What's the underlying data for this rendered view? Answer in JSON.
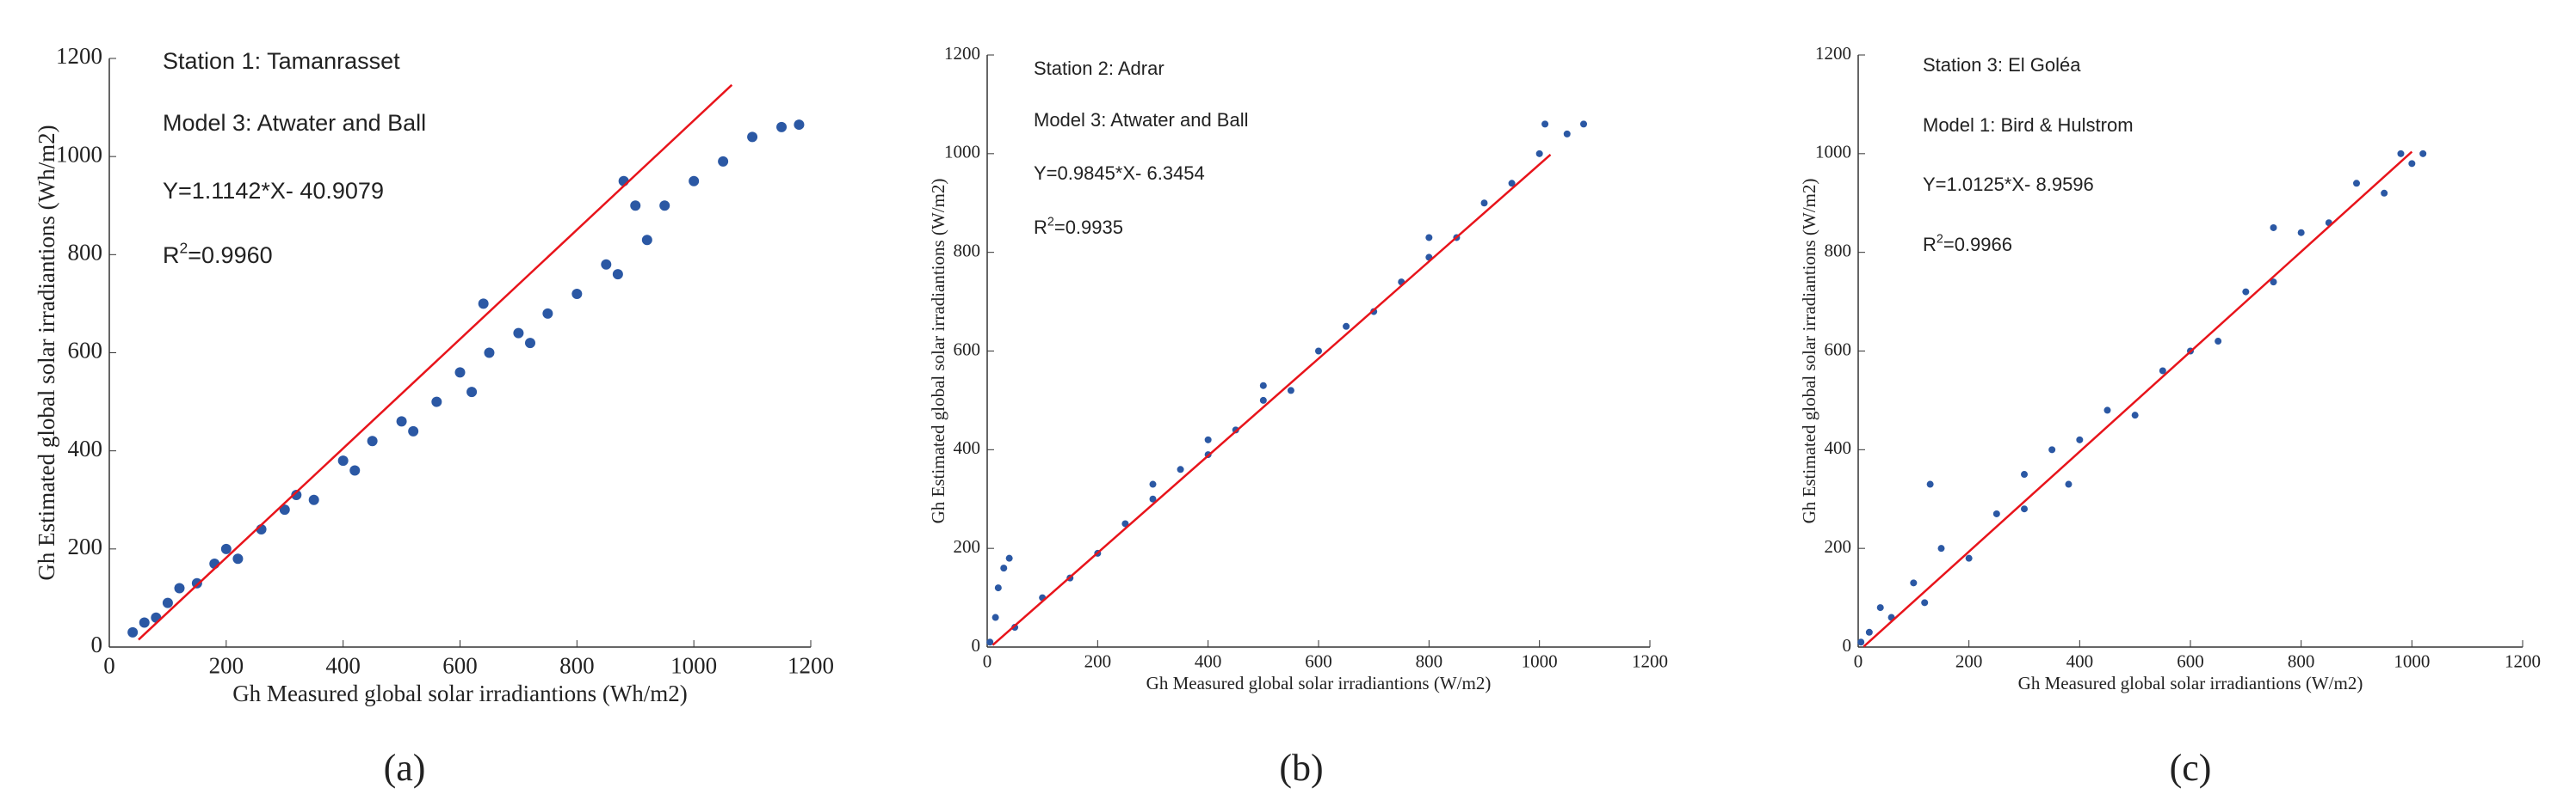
{
  "chart_data": [
    {
      "type": "scatter",
      "annotations": [
        "Station 1: Tamanrasset",
        "Model 3: Atwater and Ball",
        "Y=1.1142*X- 40.9079"
      ],
      "r_squared": [
        "R",
        "2",
        "=0.9960"
      ],
      "xlabel": "Gh Measured global solar irradiantions (Wh/m2)",
      "ylabel": "Gh Estimated global solar irradiantions (Wh/m2)",
      "caption": "(a)",
      "xlim": [
        0,
        1200
      ],
      "ylim": [
        0,
        1200
      ],
      "xticks": [
        0,
        200,
        400,
        600,
        800,
        1000,
        1200
      ],
      "yticks": [
        0,
        200,
        400,
        600,
        800,
        1000,
        1200
      ],
      "series": [
        {
          "type": "scatter",
          "color": "#2b58a4",
          "x": [
            40,
            60,
            80,
            100,
            120,
            150,
            180,
            200,
            220,
            260,
            300,
            320,
            350,
            400,
            420,
            450,
            500,
            520,
            560,
            600,
            620,
            650,
            700,
            720,
            750,
            800,
            850,
            870,
            900,
            920,
            950,
            1000,
            1050,
            1100,
            1150,
            1180,
            640,
            880
          ],
          "values": [
            30,
            50,
            60,
            90,
            120,
            130,
            170,
            200,
            180,
            240,
            280,
            310,
            300,
            380,
            360,
            420,
            460,
            440,
            500,
            560,
            520,
            600,
            640,
            620,
            680,
            720,
            780,
            760,
            900,
            830,
            900,
            950,
            990,
            1040,
            1060,
            1065,
            700,
            950
          ]
        },
        {
          "type": "line",
          "color": "#e8141b",
          "x": [
            50,
            1065
          ],
          "values": [
            15,
            1146
          ]
        }
      ]
    },
    {
      "type": "scatter",
      "annotations": [
        "Station 2: Adrar",
        "Model 3: Atwater and Ball",
        "Y=0.9845*X- 6.3454"
      ],
      "r_squared": [
        "R",
        "2",
        "=0.9935"
      ],
      "xlabel": "Gh Measured global solar irradiantions (W/m2)",
      "ylabel": "Gh Estimated global solar irradiantions (W/m2)",
      "caption": "(b)",
      "xlim": [
        0,
        1200
      ],
      "ylim": [
        0,
        1200
      ],
      "xticks": [
        0,
        200,
        400,
        600,
        800,
        1000,
        1200
      ],
      "yticks": [
        0,
        200,
        400,
        600,
        800,
        1000,
        1200
      ],
      "series": [
        {
          "type": "scatter",
          "color": "#2b58a4",
          "x": [
            5,
            15,
            20,
            30,
            40,
            50,
            100,
            150,
            200,
            250,
            300,
            350,
            400,
            400,
            450,
            500,
            550,
            600,
            650,
            700,
            750,
            800,
            850,
            900,
            950,
            1000,
            1050,
            1080,
            300,
            500,
            800,
            1010
          ],
          "values": [
            10,
            60,
            120,
            160,
            180,
            40,
            100,
            140,
            190,
            250,
            300,
            360,
            390,
            420,
            440,
            500,
            520,
            600,
            650,
            680,
            740,
            790,
            830,
            900,
            940,
            1000,
            1040,
            1060,
            330,
            530,
            830,
            1060
          ]
        },
        {
          "type": "line",
          "color": "#e8141b",
          "x": [
            10,
            1020
          ],
          "values": [
            4,
            998
          ]
        }
      ]
    },
    {
      "type": "scatter",
      "annotations": [
        "Station 3: El Goléa",
        "Model 1: Bird & Hulstrom",
        "Y=1.0125*X- 8.9596"
      ],
      "r_squared": [
        "R",
        "2",
        "=0.9966"
      ],
      "xlabel": "Gh Measured global solar irradiantions (W/m2)",
      "ylabel": "Gh Estimated global solar irradiantions (W/m2)",
      "caption": "(c)",
      "xlim": [
        0,
        1200
      ],
      "ylim": [
        0,
        1200
      ],
      "xticks": [
        0,
        200,
        400,
        600,
        800,
        1000,
        1200
      ],
      "yticks": [
        0,
        200,
        400,
        600,
        800,
        1000,
        1200
      ],
      "series": [
        {
          "type": "scatter",
          "color": "#2b58a4",
          "x": [
            5,
            20,
            40,
            60,
            100,
            120,
            130,
            150,
            200,
            250,
            300,
            350,
            380,
            400,
            450,
            500,
            550,
            600,
            650,
            700,
            750,
            800,
            850,
            900,
            950,
            980,
            1000,
            1020,
            750,
            300
          ],
          "values": [
            10,
            30,
            80,
            60,
            130,
            90,
            330,
            200,
            180,
            270,
            280,
            400,
            330,
            420,
            480,
            470,
            560,
            600,
            620,
            720,
            740,
            840,
            860,
            940,
            920,
            1000,
            980,
            1000,
            850,
            350
          ]
        },
        {
          "type": "line",
          "color": "#e8141b",
          "x": [
            10,
            1000
          ],
          "values": [
            1,
            1004
          ]
        }
      ]
    }
  ]
}
